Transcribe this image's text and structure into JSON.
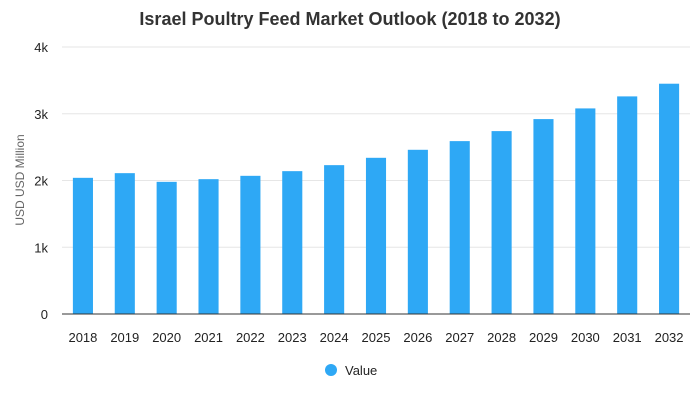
{
  "chart_data": {
    "type": "bar",
    "title": "Israel Poultry Feed Market Outlook (2018 to 2032)",
    "xlabel": "",
    "ylabel": "USD USD Million",
    "categories": [
      "2018",
      "2019",
      "2020",
      "2021",
      "2022",
      "2023",
      "2024",
      "2025",
      "2026",
      "2027",
      "2028",
      "2029",
      "2030",
      "2031",
      "2032"
    ],
    "series": [
      {
        "name": "Value",
        "color": "#2ea8f5",
        "values": [
          2040,
          2110,
          1980,
          2020,
          2070,
          2140,
          2230,
          2340,
          2460,
          2590,
          2740,
          2920,
          3080,
          3260,
          3450
        ]
      }
    ],
    "ylim": [
      0,
      4000
    ],
    "yticks": [
      0,
      1000,
      2000,
      3000,
      4000
    ],
    "ytick_labels": [
      "0",
      "1k",
      "2k",
      "3k",
      "4k"
    ],
    "grid": true,
    "legend_position": "bottom-center"
  }
}
